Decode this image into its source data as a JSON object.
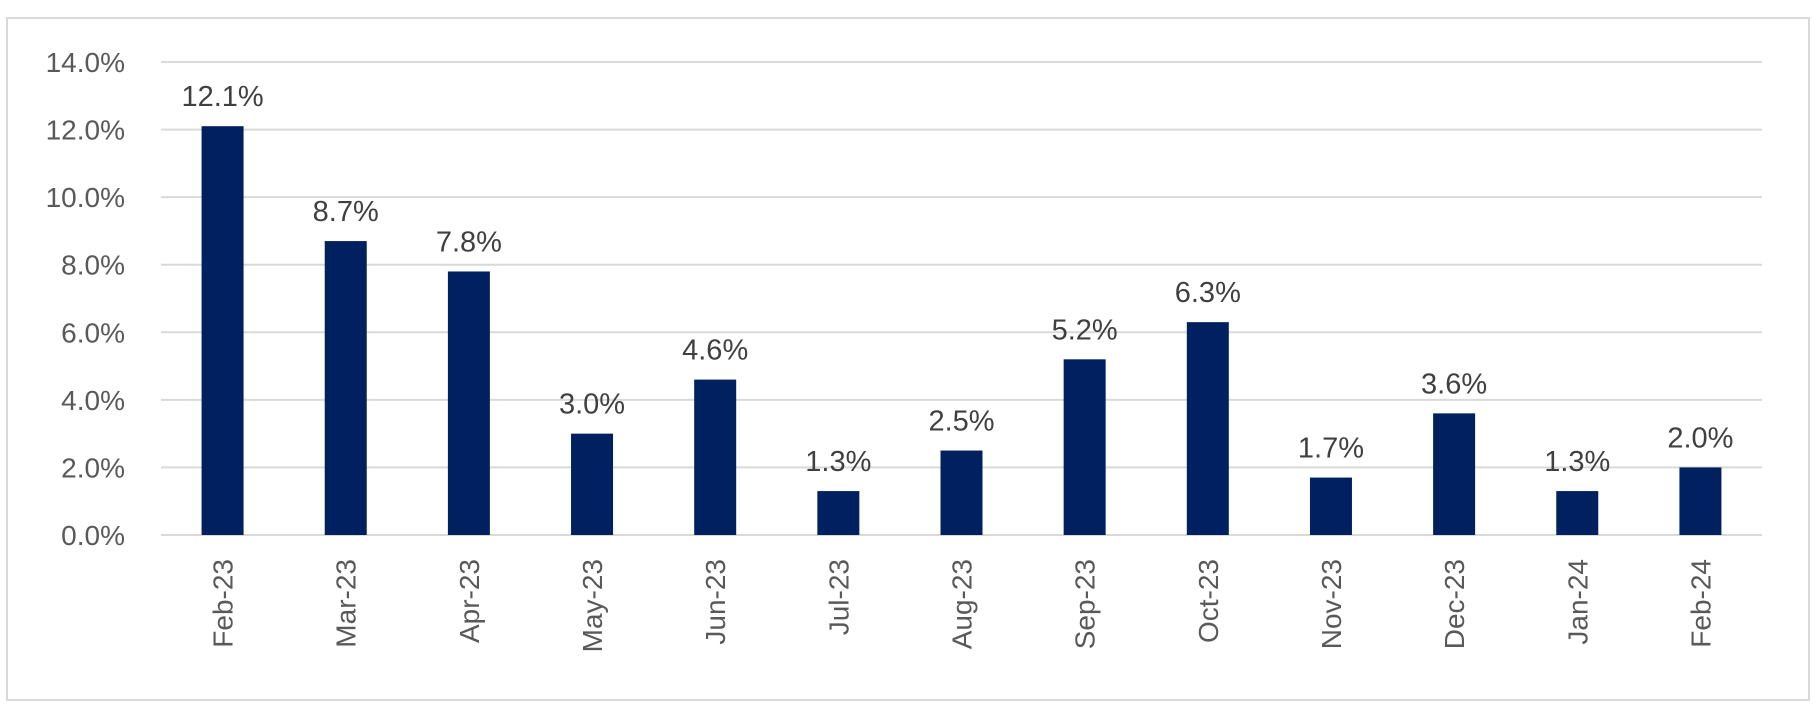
{
  "chart_data": {
    "type": "bar",
    "categories": [
      "Feb-23",
      "Mar-23",
      "Apr-23",
      "May-23",
      "Jun-23",
      "Jul-23",
      "Aug-23",
      "Sep-23",
      "Oct-23",
      "Nov-23",
      "Dec-23",
      "Jan-24",
      "Feb-24"
    ],
    "values": [
      12.1,
      8.7,
      7.8,
      3.0,
      4.6,
      1.3,
      2.5,
      5.2,
      6.3,
      1.7,
      3.6,
      1.3,
      2.0
    ],
    "data_labels": [
      "12.1%",
      "8.7%",
      "7.8%",
      "3.0%",
      "4.6%",
      "1.3%",
      "2.5%",
      "5.2%",
      "6.3%",
      "1.7%",
      "3.6%",
      "1.3%",
      "2.0%"
    ],
    "y_ticks": [
      0,
      2,
      4,
      6,
      8,
      10,
      12,
      14
    ],
    "y_tick_labels": [
      "0.0%",
      "2.0%",
      "4.0%",
      "6.0%",
      "8.0%",
      "10.0%",
      "12.0%",
      "14.0%"
    ],
    "ylim": [
      0,
      14
    ],
    "title": "",
    "xlabel": "",
    "ylabel": "",
    "grid": true,
    "legend": "none",
    "colors": {
      "bar": "#002060",
      "grid": "#d9d9d9",
      "tick_text": "#595959",
      "label_text": "#404040"
    }
  }
}
